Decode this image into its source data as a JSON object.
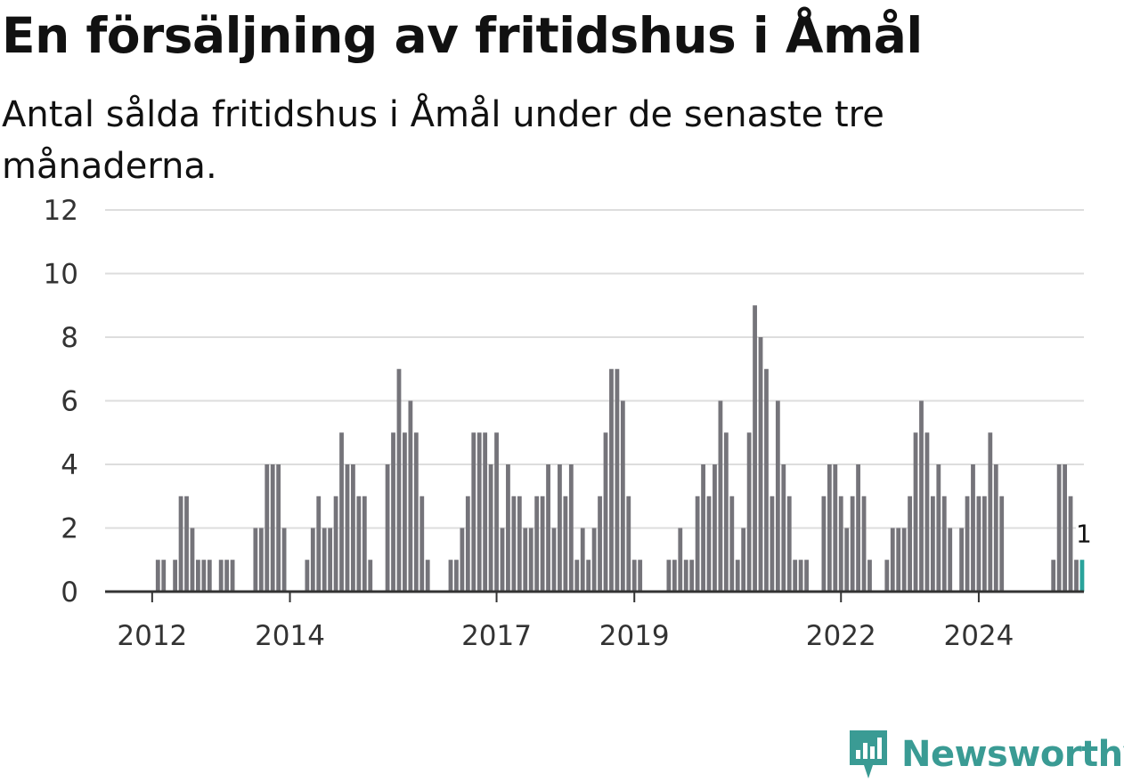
{
  "title": "En försäljning av fritidshus i Åmål",
  "subtitle": "Antal sålda fritidshus i Åmål under de senaste tre månaderna.",
  "brand": {
    "name": "Newsworthy",
    "color": "#3a9b94",
    "icon": "bar-chart-icon"
  },
  "colors": {
    "bar": "#75747a",
    "highlight": "#2aa39b",
    "grid": "#dddddd",
    "axis": "#333333"
  },
  "chart_data": {
    "type": "bar",
    "x_start": "2011-12",
    "xlabel": "",
    "ylabel": "",
    "ylim": [
      0,
      12
    ],
    "yticks": [
      0,
      2,
      4,
      6,
      8,
      10,
      12
    ],
    "xticks": [
      {
        "label": "2012",
        "date": "2012-01"
      },
      {
        "label": "2014",
        "date": "2014-01"
      },
      {
        "label": "2017",
        "date": "2017-01"
      },
      {
        "label": "2019",
        "date": "2019-01"
      },
      {
        "label": "2022",
        "date": "2022-01"
      },
      {
        "label": "2024",
        "date": "2024-01"
      }
    ],
    "grid": true,
    "values": [
      0,
      0,
      1,
      1,
      0,
      1,
      3,
      3,
      2,
      1,
      1,
      1,
      0,
      1,
      1,
      1,
      0,
      0,
      0,
      2,
      2,
      4,
      4,
      4,
      2,
      0,
      0,
      0,
      1,
      2,
      3,
      2,
      2,
      3,
      5,
      4,
      4,
      3,
      3,
      1,
      0,
      0,
      4,
      5,
      7,
      5,
      6,
      5,
      3,
      1,
      0,
      0,
      0,
      1,
      1,
      2,
      3,
      5,
      5,
      5,
      4,
      5,
      2,
      4,
      3,
      3,
      2,
      2,
      3,
      3,
      4,
      2,
      4,
      3,
      4,
      1,
      2,
      1,
      2,
      3,
      5,
      7,
      7,
      6,
      3,
      1,
      1,
      0,
      0,
      0,
      0,
      1,
      1,
      2,
      1,
      1,
      3,
      4,
      3,
      4,
      6,
      5,
      3,
      1,
      2,
      5,
      9,
      8,
      7,
      3,
      6,
      4,
      3,
      1,
      1,
      1,
      0,
      0,
      3,
      4,
      4,
      3,
      2,
      3,
      4,
      3,
      1,
      0,
      0,
      1,
      2,
      2,
      2,
      3,
      5,
      6,
      5,
      3,
      4,
      3,
      2,
      0,
      2,
      3,
      4,
      3,
      3,
      5,
      4,
      3,
      0,
      0,
      0,
      0,
      0,
      0,
      0,
      0,
      1,
      4,
      4,
      3,
      1,
      1
    ],
    "highlight_index": 163,
    "highlight_label": "1"
  }
}
